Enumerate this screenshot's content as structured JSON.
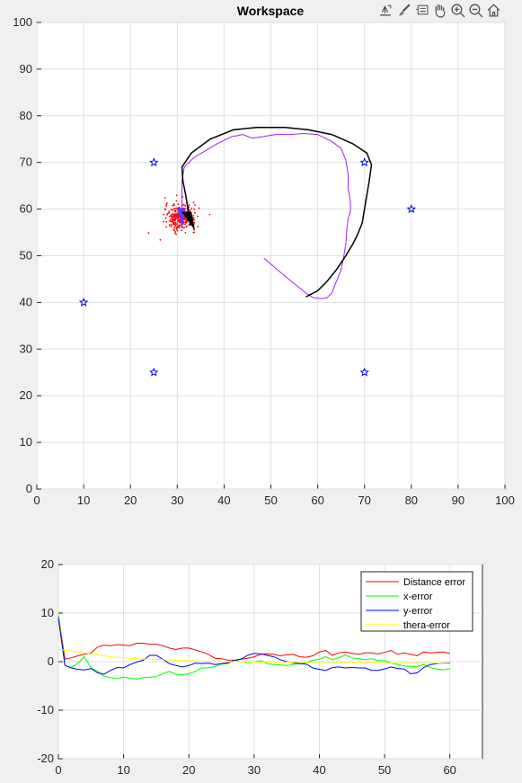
{
  "toolbar": {
    "icons": [
      "export-icon",
      "brush-icon",
      "datatip-icon",
      "pan-icon",
      "zoom-in-icon",
      "zoom-out-icon",
      "home-icon"
    ]
  },
  "chart_data": [
    {
      "type": "scatter",
      "title": "Workspace",
      "xlabel": "",
      "ylabel": "",
      "xlim": [
        0,
        100
      ],
      "ylim": [
        0,
        100
      ],
      "xticks": [
        0,
        10,
        20,
        30,
        40,
        50,
        60,
        70,
        80,
        90,
        100
      ],
      "yticks": [
        0,
        10,
        20,
        30,
        40,
        50,
        60,
        70,
        80,
        90,
        100
      ],
      "grid": true,
      "landmarks": [
        [
          25,
          70
        ],
        [
          70,
          70
        ],
        [
          80,
          60
        ],
        [
          10,
          40
        ],
        [
          25,
          25
        ],
        [
          70,
          25
        ]
      ],
      "landmark_color": "#0000ff",
      "true_path_color": "#000000",
      "estimated_path_color": "#a020f0",
      "particle_color": "#ff0000",
      "true_path": [
        [
          57.5,
          41.2
        ],
        [
          60,
          42.5
        ],
        [
          62,
          44.5
        ],
        [
          64,
          47
        ],
        [
          66,
          50
        ],
        [
          67.5,
          52.5
        ],
        [
          68.5,
          54.5
        ],
        [
          69.5,
          57
        ],
        [
          70,
          60
        ],
        [
          70.5,
          63
        ],
        [
          71,
          66
        ],
        [
          71.5,
          69.5
        ],
        [
          70.5,
          72
        ],
        [
          67.5,
          74
        ],
        [
          63,
          76
        ],
        [
          58,
          77
        ],
        [
          53,
          77.5
        ],
        [
          47,
          77.5
        ],
        [
          42,
          77
        ],
        [
          37,
          75
        ],
        [
          33,
          72
        ],
        [
          31,
          69
        ],
        [
          31.2,
          66
        ],
        [
          31.8,
          63
        ],
        [
          32.3,
          60
        ],
        [
          32.5,
          58
        ],
        [
          32.8,
          56.5
        ]
      ],
      "estimated_path": [
        [
          48.5,
          49.5
        ],
        [
          52,
          46.5
        ],
        [
          55,
          44
        ],
        [
          57.5,
          42
        ],
        [
          59,
          41
        ],
        [
          61,
          40.8
        ],
        [
          62,
          41
        ],
        [
          63,
          42
        ],
        [
          64,
          44.5
        ],
        [
          65,
          47
        ],
        [
          65.5,
          49.5
        ],
        [
          66,
          52.5
        ],
        [
          66.2,
          55.5
        ],
        [
          66.5,
          58
        ],
        [
          67,
          59.5
        ],
        [
          67,
          61.5
        ],
        [
          66.5,
          64.5
        ],
        [
          66.5,
          67.5
        ],
        [
          66,
          70.5
        ],
        [
          65,
          73
        ],
        [
          63,
          74.5
        ],
        [
          60,
          76
        ],
        [
          57,
          76.2
        ],
        [
          54,
          76
        ],
        [
          51,
          76
        ],
        [
          48,
          75.5
        ],
        [
          46,
          75.2
        ],
        [
          44,
          76
        ],
        [
          41.5,
          75.5
        ],
        [
          38.5,
          74
        ],
        [
          36,
          72.5
        ],
        [
          33.5,
          71
        ],
        [
          31.5,
          69
        ],
        [
          31,
          66
        ],
        [
          31,
          63
        ],
        [
          31,
          60
        ],
        [
          31.2,
          58
        ]
      ],
      "robot_true": [
        31.5,
        57.5
      ],
      "robot_estimated": [
        30.7,
        58.3
      ]
    },
    {
      "type": "line",
      "title": "",
      "xlabel": "",
      "ylabel": "",
      "xlim": [
        0,
        65
      ],
      "ylim": [
        -20,
        20
      ],
      "xticks": [
        0,
        10,
        20,
        30,
        40,
        50,
        60
      ],
      "yticks": [
        -20,
        -10,
        0,
        10,
        20
      ],
      "grid": true,
      "legend_position": "top-right",
      "series": [
        {
          "name": "Distance error",
          "color": "#ff0000",
          "x": [
            0,
            1,
            2,
            3,
            4,
            5,
            6,
            7,
            8,
            9,
            10,
            11,
            12,
            13,
            14,
            15,
            16,
            17,
            18,
            19,
            20,
            21,
            22,
            23,
            24,
            25,
            26,
            27,
            28,
            29,
            30,
            31,
            32,
            33,
            34,
            35,
            36,
            37,
            38,
            39,
            40,
            41,
            42,
            43,
            44,
            45,
            46,
            47,
            48,
            49,
            50,
            51,
            52,
            53,
            54,
            55,
            56,
            57,
            58,
            59,
            60
          ],
          "y": [
            9.5,
            0.5,
            0.8,
            1.2,
            1.5,
            1.8,
            3,
            3.4,
            3.3,
            3.5,
            3.4,
            3.3,
            3.8,
            3.8,
            3.6,
            3.6,
            3.3,
            2.8,
            2.5,
            2.8,
            2.8,
            2.4,
            2,
            1.5,
            0.7,
            0.6,
            0.3,
            0.3,
            0.5,
            0.7,
            1,
            1.5,
            1.6,
            1.5,
            1.2,
            1.4,
            1.5,
            1,
            0.9,
            1.2,
            2,
            2.3,
            1.3,
            1.8,
            2,
            1.7,
            1.5,
            1.8,
            1.8,
            1.6,
            1.9,
            2.3,
            1.5,
            1.8,
            1.5,
            1.2,
            2,
            1.8,
            1.9,
            2,
            1.7
          ]
        },
        {
          "name": "x-error",
          "color": "#00ff00",
          "x": [
            0,
            1,
            2,
            3,
            4,
            5,
            6,
            7,
            8,
            9,
            10,
            11,
            12,
            13,
            14,
            15,
            16,
            17,
            18,
            19,
            20,
            21,
            22,
            23,
            24,
            25,
            26,
            27,
            28,
            29,
            30,
            31,
            32,
            33,
            34,
            35,
            36,
            37,
            38,
            39,
            40,
            41,
            42,
            43,
            44,
            45,
            46,
            47,
            48,
            49,
            50,
            51,
            52,
            53,
            54,
            55,
            56,
            57,
            58,
            59,
            60
          ],
          "y": [
            9.5,
            -0.8,
            -1.2,
            -0.3,
            1,
            -1.3,
            -2,
            -3,
            -3.3,
            -3.5,
            -3.2,
            -3.4,
            -3.6,
            -3.3,
            -3.2,
            -3.1,
            -2.5,
            -2,
            -2.6,
            -2.7,
            -2.5,
            -2,
            -1.3,
            -1.3,
            -1,
            -0.5,
            -0.4,
            0.3,
            0,
            -0.2,
            -0.1,
            0.2,
            -0.4,
            -0.6,
            -0.7,
            -0.8,
            -0.6,
            -0.4,
            -0.2,
            0.3,
            0.5,
            1,
            0.4,
            0.8,
            1.4,
            0.8,
            0.6,
            0.4,
            0.6,
            0.2,
            0.2,
            -0.3,
            -0.6,
            -0.9,
            -1,
            -1,
            -0.6,
            -1.2,
            -1.5,
            -1.7,
            -1.4
          ]
        },
        {
          "name": "y-error",
          "color": "#0000ff",
          "x": [
            0,
            1,
            2,
            3,
            4,
            5,
            6,
            7,
            8,
            9,
            10,
            11,
            12,
            13,
            14,
            15,
            16,
            17,
            18,
            19,
            20,
            21,
            22,
            23,
            24,
            25,
            26,
            27,
            28,
            29,
            30,
            31,
            32,
            33,
            34,
            35,
            36,
            37,
            38,
            39,
            40,
            41,
            42,
            43,
            44,
            45,
            46,
            47,
            48,
            49,
            50,
            51,
            52,
            53,
            54,
            55,
            56,
            57,
            58,
            59,
            60
          ],
          "y": [
            9,
            -0.8,
            -1.3,
            -1.6,
            -1.7,
            -1.4,
            -2.3,
            -2.6,
            -1.8,
            -1.2,
            -1.3,
            -0.6,
            -0.1,
            0.3,
            1.3,
            1.3,
            0.5,
            -0.4,
            -0.8,
            -1.1,
            -0.8,
            -0.3,
            -0.4,
            -0.3,
            -0.6,
            -0.4,
            -0.2,
            0.3,
            0.5,
            1.3,
            1.7,
            1.6,
            1.3,
            1,
            0.4,
            0,
            -0.2,
            -0.4,
            -0.5,
            -1.3,
            -1.6,
            -1.8,
            -1.2,
            -1.1,
            -1.3,
            -1.2,
            -1.3,
            -1.3,
            -1.8,
            -1.8,
            -1.5,
            -1.1,
            -1.4,
            -1.5,
            -2.5,
            -2.3,
            -1.2,
            -0.6,
            -0.4,
            -0.3,
            -0.3
          ]
        },
        {
          "name": "thera-error",
          "color": "#ffff00",
          "x": [
            0,
            2,
            4,
            6,
            8,
            10,
            12,
            14,
            16,
            18,
            20,
            22,
            24,
            26,
            28,
            30,
            32,
            34,
            36,
            38,
            40,
            42,
            44,
            46,
            48,
            50,
            52,
            54,
            56,
            58,
            60
          ],
          "y": [
            2.5,
            2.2,
            1.8,
            1.4,
            1.0,
            0.8,
            0.6,
            0.5,
            0.4,
            0.3,
            0.2,
            0.1,
            0.1,
            0,
            0,
            -0.1,
            -0.1,
            -0.1,
            -0.1,
            -0.2,
            -0.2,
            -0.2,
            -0.2,
            -0.2,
            -0.2,
            -0.3,
            -0.3,
            -0.3,
            -0.3,
            -0.3,
            -0.4
          ]
        }
      ]
    }
  ]
}
